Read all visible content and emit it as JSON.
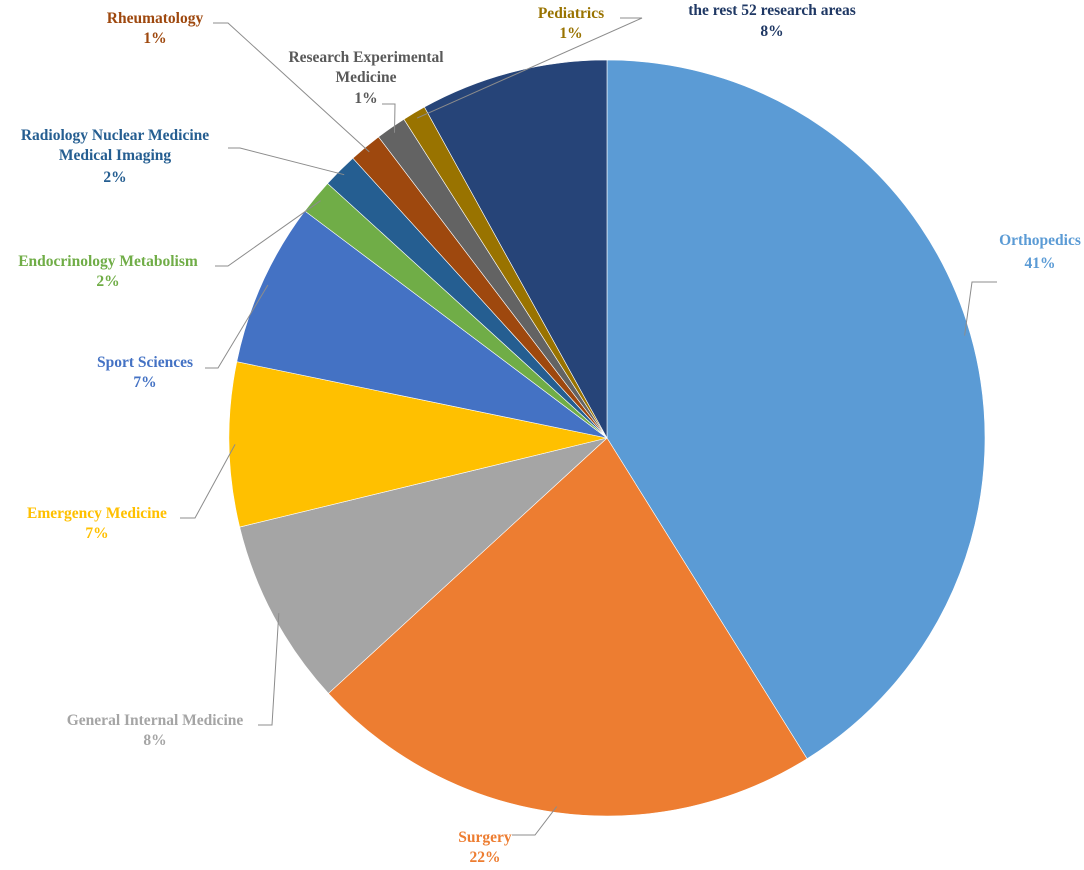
{
  "chart_data": {
    "type": "pie",
    "title": "",
    "slices": [
      {
        "name": "Orthopedics",
        "value": 41,
        "value_label": "41%",
        "color": "#5b9bd5"
      },
      {
        "name": "Surgery",
        "value": 22,
        "value_label": "22%",
        "color": "#ed7d31"
      },
      {
        "name": "General Internal Medicine",
        "value": 8,
        "value_label": "8%",
        "color": "#a5a5a5"
      },
      {
        "name": "Emergency Medicine",
        "value": 7,
        "value_label": "7%",
        "color": "#ffc000"
      },
      {
        "name": "Sport Sciences",
        "value": 7,
        "value_label": "7%",
        "color": "#4472c4"
      },
      {
        "name": "Endocrinology Metabolism",
        "value": 1.5,
        "value_label": "2%",
        "color": "#70ad47"
      },
      {
        "name": "Radiology Nuclear Medicine Medical Imaging",
        "value": 1.5,
        "value_label": "2%",
        "color": "#255e91"
      },
      {
        "name": "Rheumatology",
        "value": 1.4,
        "value_label": "1%",
        "color": "#9e480e"
      },
      {
        "name": "Research Experimental Medicine",
        "value": 1.3,
        "value_label": "1%",
        "color": "#636363"
      },
      {
        "name": "Pediatrics",
        "value": 1.0,
        "value_label": "1%",
        "color": "#997300"
      },
      {
        "name": "the rest 52 research areas",
        "value": 8,
        "value_label": "8%",
        "color": "#264478"
      }
    ],
    "label_colors": [
      "#5b9bd5",
      "#ed7d31",
      "#a5a5a5",
      "#ffc000",
      "#4472c4",
      "#70ad47",
      "#255e91",
      "#9e480e",
      "#595959",
      "#997300",
      "#1f3864"
    ]
  }
}
